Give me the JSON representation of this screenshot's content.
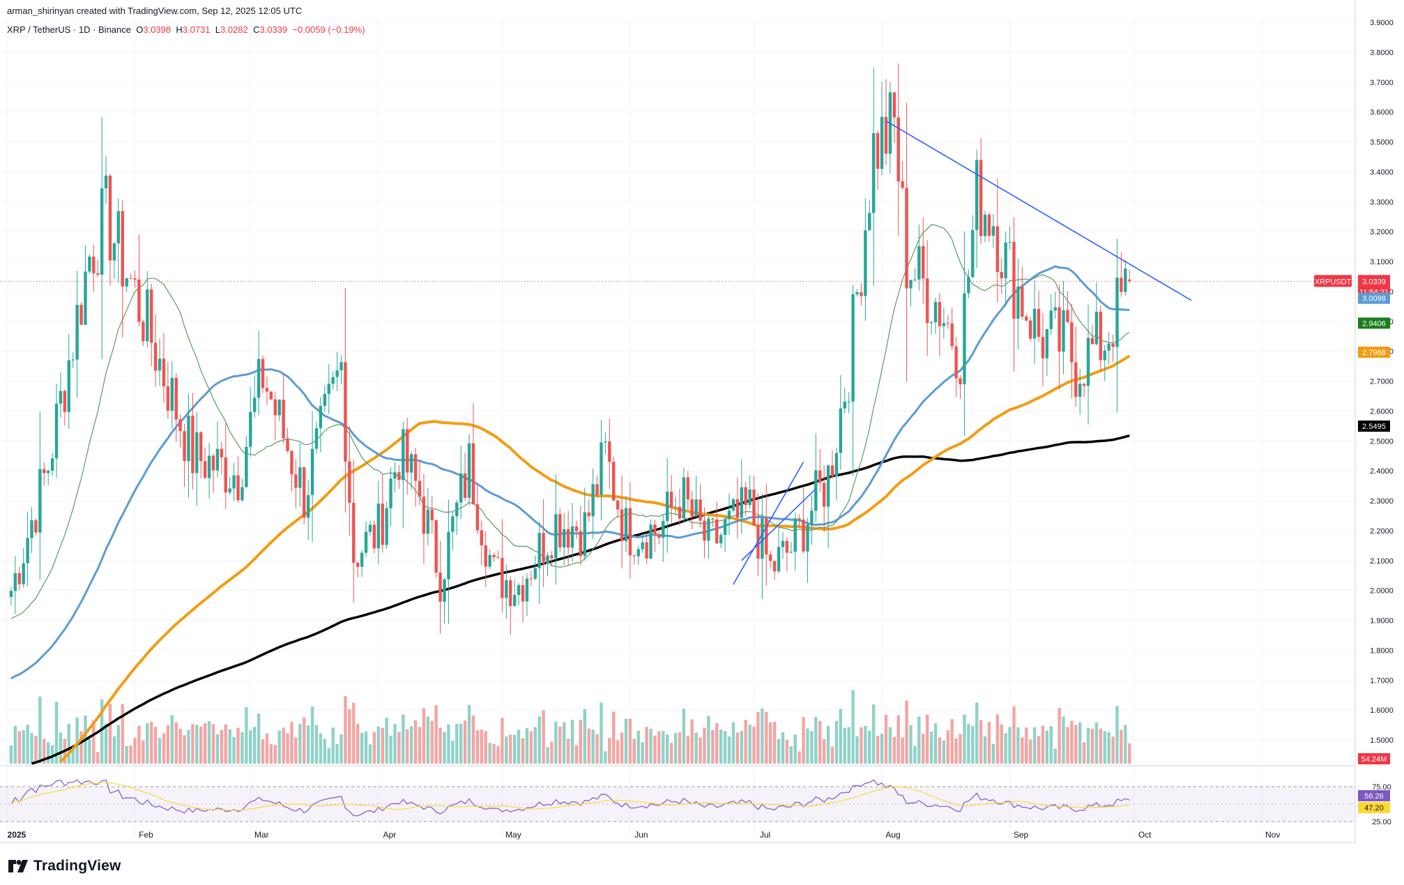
{
  "header": {
    "credit": "arman_shirinyan created with TradingView.com, Sep 12, 2025 12:05 UTC"
  },
  "legend": {
    "symbol": "XRP / TetherUS · 1D · Binance",
    "o_label": "O",
    "o": "3.0398",
    "h_label": "H",
    "h": "3.0731",
    "l_label": "L",
    "l": "3.0282",
    "c_label": "C",
    "c": "3.0339",
    "change": "−0.0059 (−0.19%)"
  },
  "brand": {
    "name": "TradingView"
  },
  "colors": {
    "up": "#26a69a",
    "down": "#ef5350",
    "ma_fast": "#5a9a5f",
    "ma_blue": "#5b9bd5",
    "ma_orange": "#f39c12",
    "ma_black": "#000000",
    "trendline": "#2962ff",
    "rsi": "#7e57c2",
    "rsi_ma": "#fdd835"
  },
  "chart_data": {
    "type": "candlestick",
    "symbol": "XRPUSDT",
    "price_axis": [
      "3.9000",
      "3.8000",
      "3.7000",
      "3.6000",
      "3.5000",
      "3.4000",
      "3.3000",
      "3.2000",
      "3.1000",
      "3.0000",
      "2.9000",
      "2.8000",
      "2.7000",
      "2.6000",
      "2.5000",
      "2.4000",
      "2.3000",
      "2.2000",
      "2.1000",
      "2.0000",
      "1.9000",
      "1.8000",
      "1.7000",
      "1.6000",
      "1.5000"
    ],
    "ylim": [
      1.5,
      3.9
    ],
    "time_axis": [
      "2025",
      "Feb",
      "Mar",
      "Apr",
      "May",
      "Jun",
      "Jul",
      "Aug",
      "Sep",
      "Oct",
      "Nov"
    ],
    "price_labels": [
      {
        "text": "XRPUSDT",
        "value": 3.0339,
        "color": "#f23645"
      },
      {
        "text": "3.0339",
        "value": 3.0339,
        "color": "#f23645"
      },
      {
        "text": "11:54:21",
        "value": 3.0339,
        "color": "#f23645"
      },
      {
        "text": "3.0098",
        "value": 3.0098,
        "color": "#5b9bd5"
      },
      {
        "text": "2.9406",
        "value": 2.9406,
        "color": "#1b7c1b"
      },
      {
        "text": "2.7968",
        "value": 2.7968,
        "color": "#f39c12"
      },
      {
        "text": "2.5495",
        "value": 2.5495,
        "color": "#000000"
      }
    ],
    "volume_label": "54.24M",
    "rsi": {
      "axis": [
        "75.00",
        "25.00"
      ],
      "value_labels": [
        {
          "text": "56.26",
          "color": "#7e57c2"
        },
        {
          "text": "47.20",
          "color": "#fdd835"
        }
      ]
    },
    "anchors": [
      [
        1,
        2.0,
        "Jan 1"
      ],
      [
        10,
        2.42
      ],
      [
        20,
        3.12
      ],
      [
        24,
        3.25
      ],
      [
        33,
        2.92
      ],
      [
        45,
        2.45
      ],
      [
        56,
        2.39
      ],
      [
        62,
        2.72
      ],
      [
        72,
        2.32
      ],
      [
        81,
        2.75
      ],
      [
        84,
        2.12
      ],
      [
        90,
        2.2
      ],
      [
        95,
        2.46
      ],
      [
        100,
        2.32
      ],
      [
        105,
        2.05
      ],
      [
        112,
        2.42
      ],
      [
        118,
        2.05
      ],
      [
        124,
        2.02
      ],
      [
        133,
        2.23
      ],
      [
        140,
        2.21
      ],
      [
        145,
        2.45
      ],
      [
        150,
        2.2
      ],
      [
        158,
        2.2
      ],
      [
        163,
        2.32
      ],
      [
        170,
        2.15
      ],
      [
        180,
        2.27
      ],
      [
        185,
        2.07
      ],
      [
        190,
        2.14
      ],
      [
        199,
        2.38
      ],
      [
        204,
        2.75
      ],
      [
        210,
        3.48
      ],
      [
        215,
        3.55
      ],
      [
        218,
        3.1
      ],
      [
        226,
        2.95
      ],
      [
        231,
        2.8
      ],
      [
        235,
        3.32
      ],
      [
        239,
        3.25
      ],
      [
        242,
        3.1
      ],
      [
        250,
        2.85
      ],
      [
        257,
        2.82
      ],
      [
        259,
        2.75
      ],
      [
        266,
        2.84
      ],
      [
        272,
        3.03
      ]
    ]
  }
}
